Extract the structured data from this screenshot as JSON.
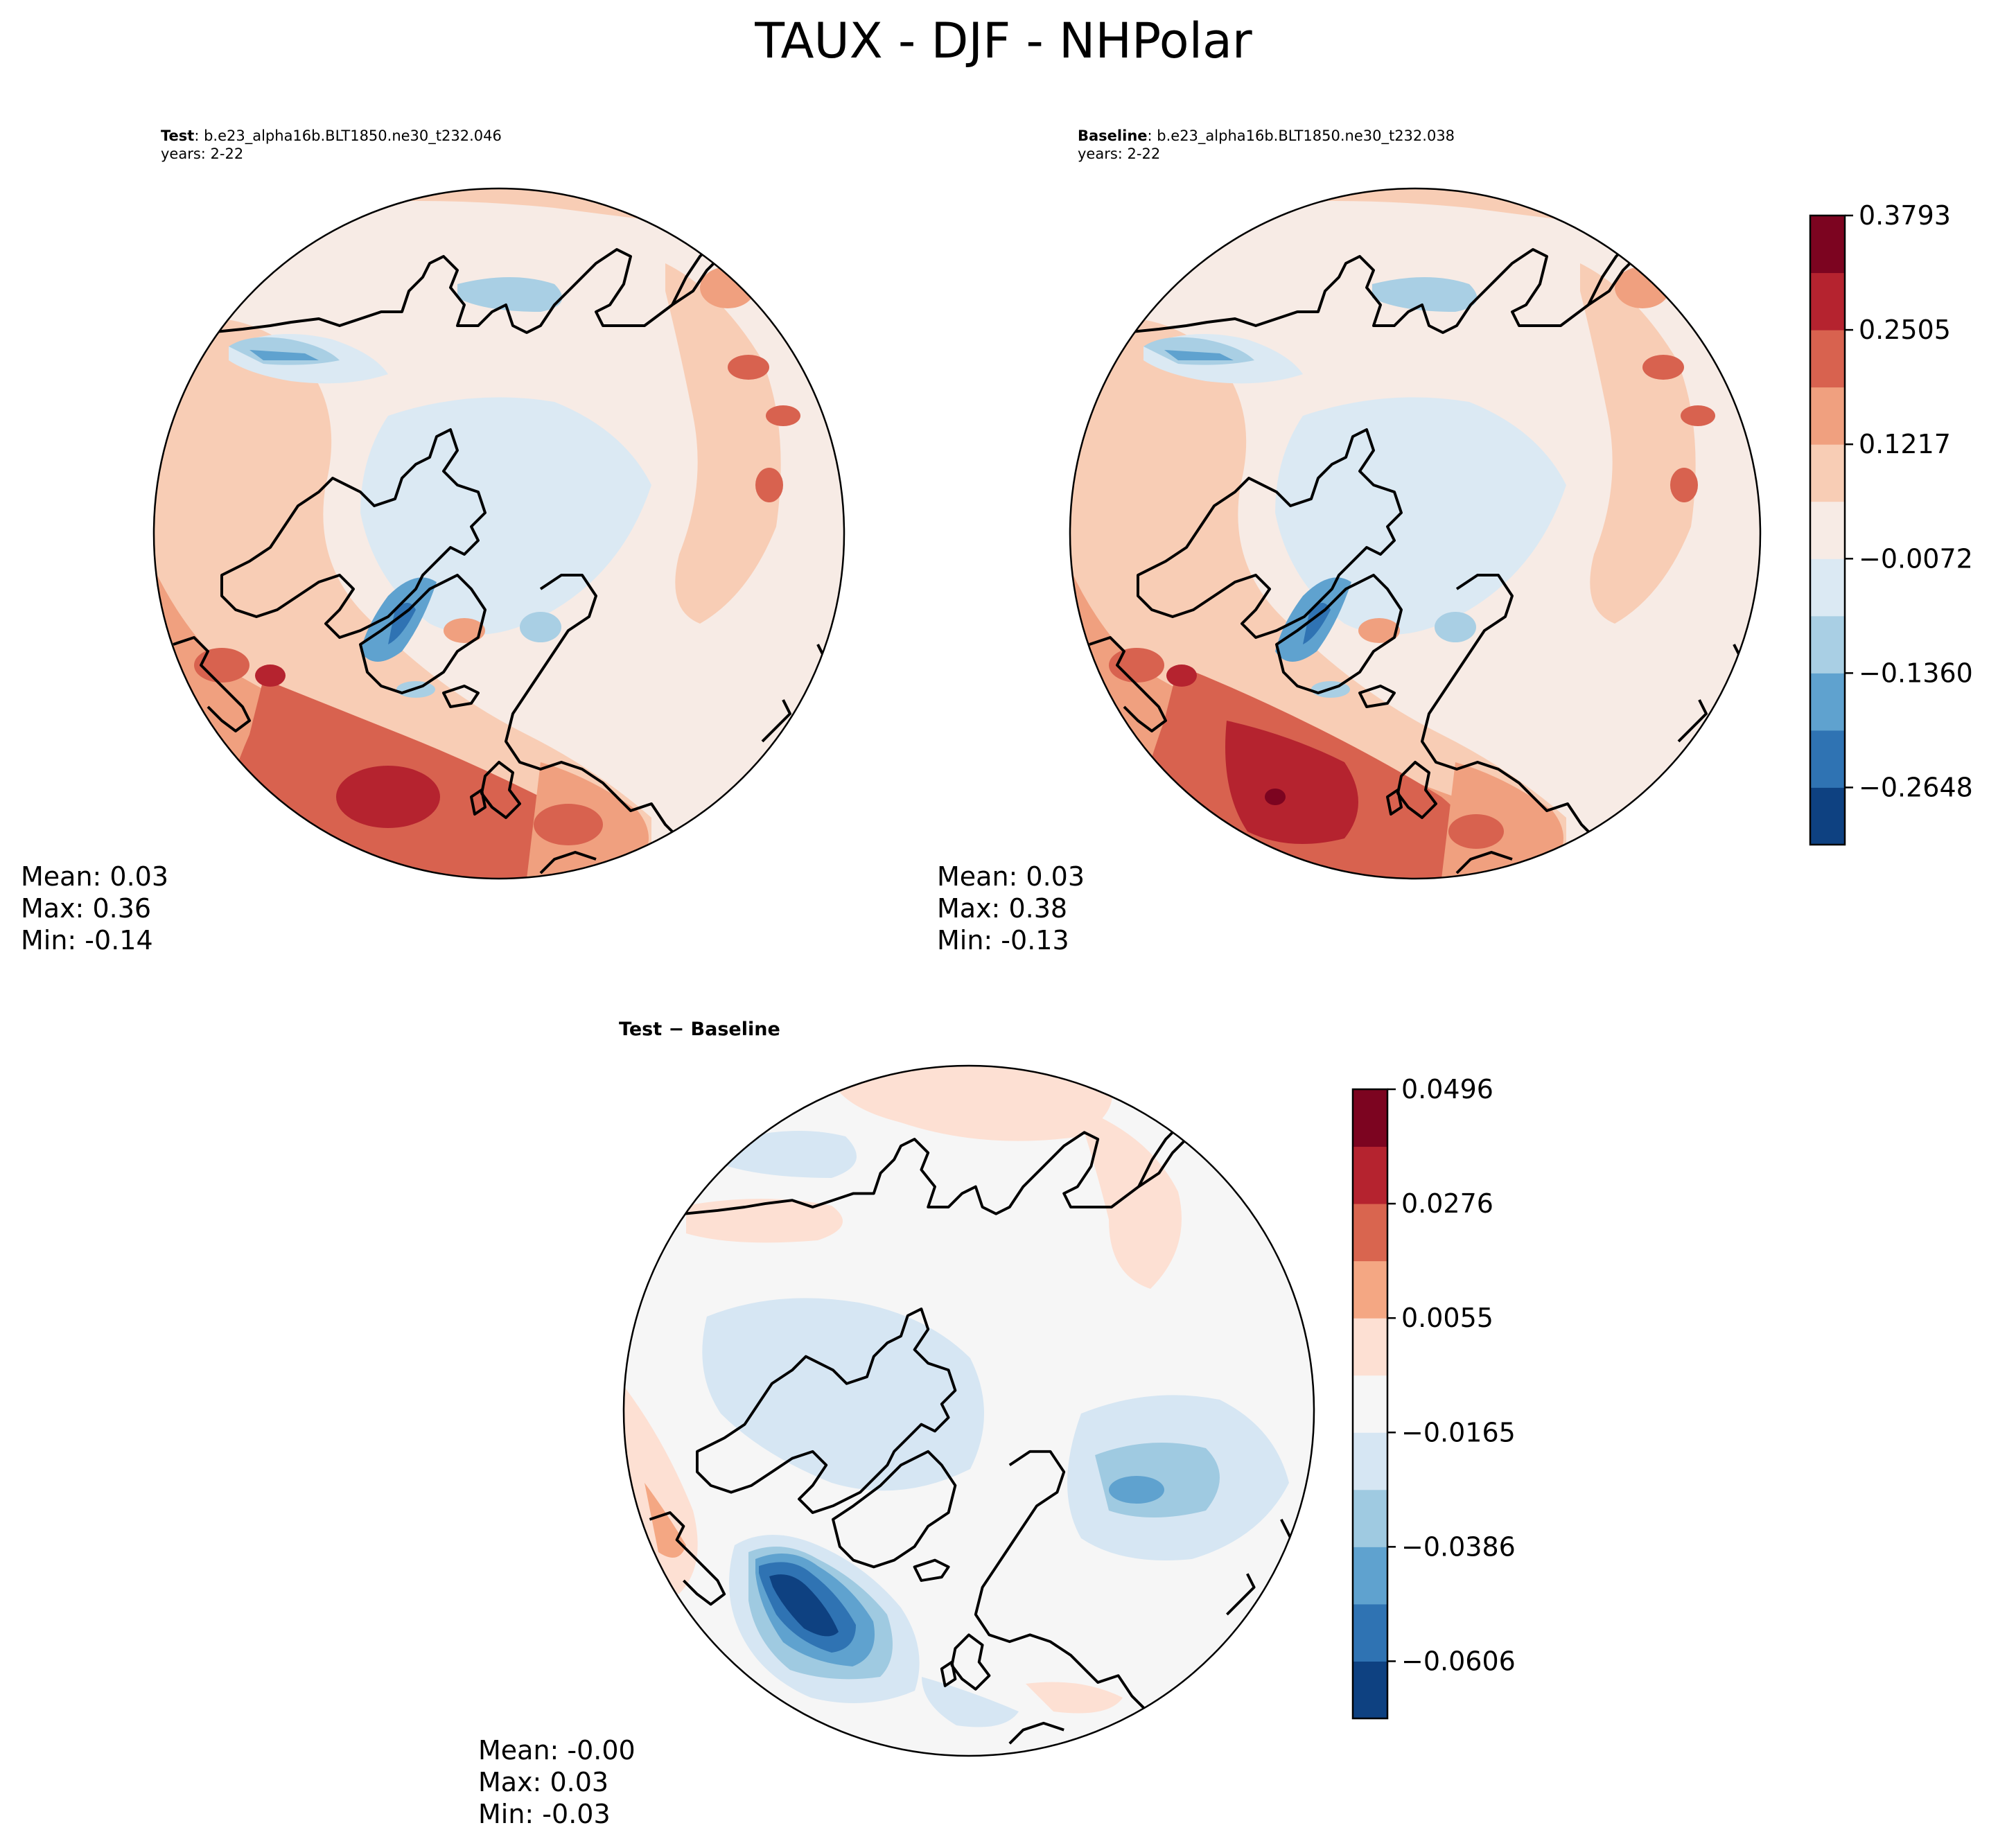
{
  "title": "TAUX - DJF - NHPolar",
  "panels": {
    "test": {
      "label": "Test",
      "case": ": b.e23_alpha16b.BLT1850.ne30_t232.046",
      "years": "years: 2-22",
      "mean": "Mean:  0.03",
      "max": "Max:  0.36",
      "min": "Min: -0.14"
    },
    "baseline": {
      "label": "Baseline",
      "case": ": b.e23_alpha16b.BLT1850.ne30_t232.038",
      "years": "years: 2-22",
      "mean": "Mean:  0.03",
      "max": "Max:  0.38",
      "min": "Min: -0.13"
    },
    "diff": {
      "title": "Test − Baseline",
      "mean": "Mean: -0.00",
      "max": "Max:  0.03",
      "min": "Min: -0.03"
    }
  },
  "colorbar_top": {
    "colors": [
      "#0e4181",
      "#2f73b3",
      "#5fa2cf",
      "#a9cfe4",
      "#dbe9f3",
      "#f7ebe5",
      "#f8cdb5",
      "#f0a07f",
      "#d8624f",
      "#b5232f",
      "#7c0420"
    ],
    "tick_labels": [
      "−0.2648",
      "−0.1360",
      "−0.0072",
      "0.1217",
      "0.2505",
      "0.3793"
    ]
  },
  "colorbar_diff": {
    "colors": [
      "#0e4181",
      "#2f73b3",
      "#5fa2cf",
      "#9fcae1",
      "#d6e6f3",
      "#f6f6f6",
      "#fde0d3",
      "#f4a783",
      "#d9654f",
      "#b5232f",
      "#7c0420"
    ],
    "tick_labels": [
      "−0.0606",
      "−0.0386",
      "−0.0165",
      "0.0055",
      "0.0276",
      "0.0496"
    ]
  }
}
